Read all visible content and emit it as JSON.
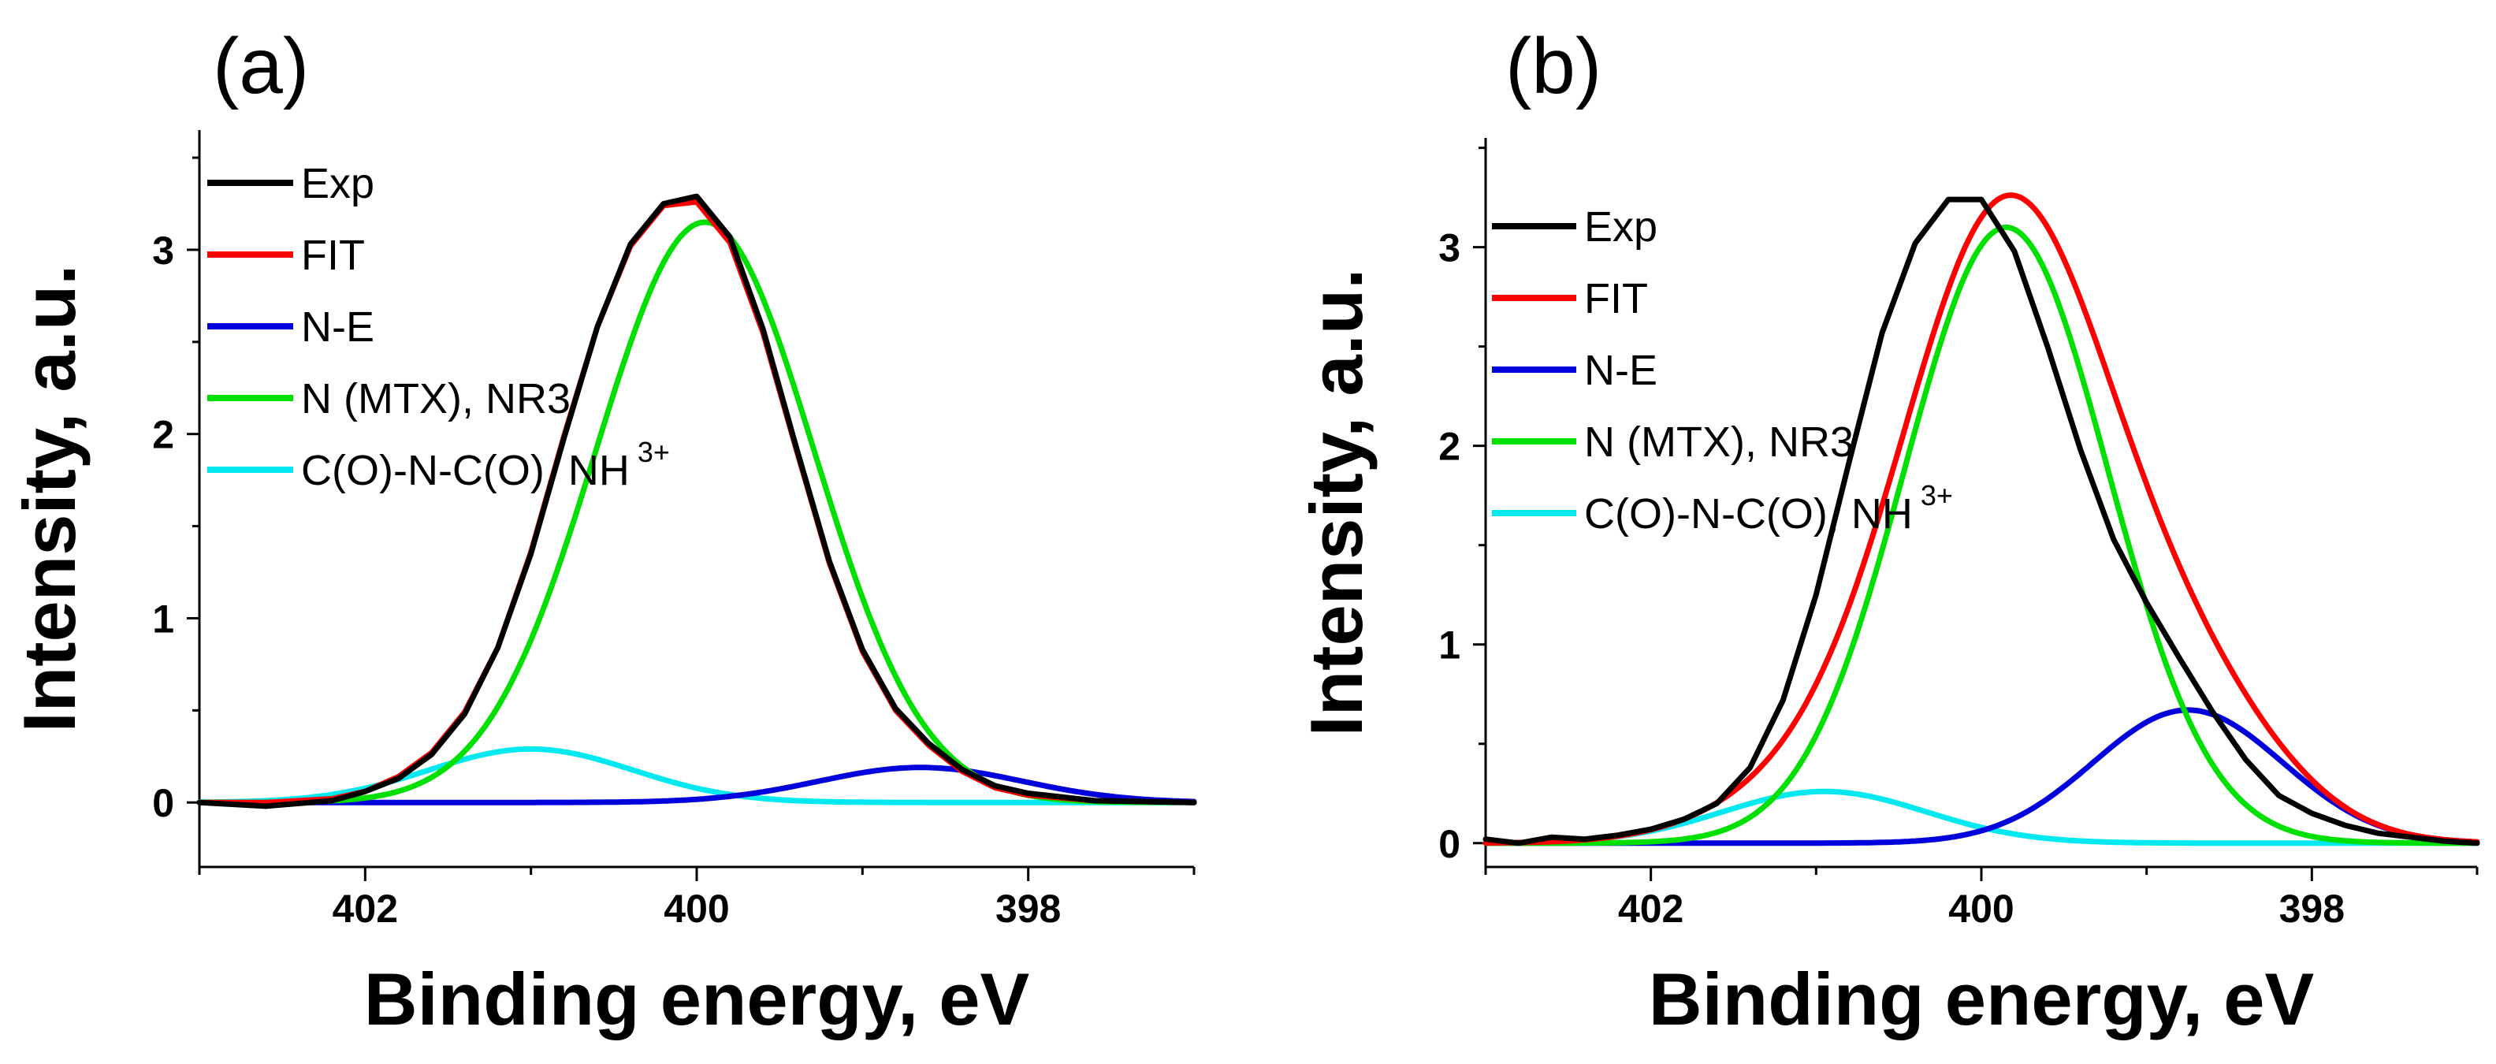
{
  "chart_data": [
    {
      "panel_label": "(a)",
      "type": "line",
      "xlabel": "Binding energy, eV",
      "ylabel": "Intensity, a.u.",
      "xlim": [
        403.0,
        397.0
      ],
      "ylim": [
        -0.35,
        3.65
      ],
      "x_ticks": [
        402,
        400,
        398
      ],
      "y_ticks": [
        0,
        1,
        2,
        3
      ],
      "grid": false,
      "legend_position": "top-left",
      "components": [
        {
          "name": "N-E",
          "type": "gaussian",
          "amplitude": 0.19,
          "center": 398.65,
          "fwhm": 1.45
        },
        {
          "name": "N (MTX), NR3",
          "type": "gaussian",
          "amplitude": 3.15,
          "center": 399.95,
          "fwhm": 1.55
        },
        {
          "name": "C(O)-N-C(O), NH",
          "superscript": "3+",
          "type": "gaussian",
          "amplitude": 0.29,
          "center": 401.0,
          "fwhm": 1.45
        }
      ],
      "series": [
        {
          "name": "Exp",
          "color": "#000000",
          "x": [
            403.0,
            402.6,
            402.2,
            402.0,
            401.8,
            401.6,
            401.4,
            401.2,
            401.0,
            400.8,
            400.6,
            400.4,
            400.2,
            400.0,
            399.8,
            399.6,
            399.4,
            399.2,
            399.0,
            398.8,
            398.6,
            398.4,
            398.2,
            398.0,
            397.6,
            397.0
          ],
          "y": [
            0.0,
            -0.02,
            0.01,
            0.06,
            0.13,
            0.26,
            0.48,
            0.84,
            1.35,
            1.98,
            2.58,
            3.03,
            3.25,
            3.29,
            3.07,
            2.57,
            1.93,
            1.31,
            0.83,
            0.51,
            0.32,
            0.18,
            0.09,
            0.05,
            0.01,
            0.0
          ]
        },
        {
          "name": "FIT",
          "color": "#ff0000",
          "x": [
            403.0,
            402.6,
            402.2,
            402.0,
            401.8,
            401.6,
            401.4,
            401.2,
            401.0,
            400.8,
            400.6,
            400.4,
            400.2,
            400.0,
            399.8,
            399.6,
            399.4,
            399.2,
            399.0,
            398.8,
            398.6,
            398.4,
            398.2,
            398.0,
            397.6,
            397.0
          ],
          "y": [
            0.0,
            0.0,
            0.02,
            0.06,
            0.14,
            0.27,
            0.49,
            0.84,
            1.36,
            1.99,
            2.58,
            3.02,
            3.24,
            3.26,
            3.04,
            2.55,
            1.92,
            1.3,
            0.82,
            0.5,
            0.31,
            0.17,
            0.08,
            0.04,
            0.01,
            0.0
          ]
        },
        {
          "name": "N-E",
          "color": "#0000dd",
          "fill": "component"
        },
        {
          "name": "N (MTX), NR3",
          "color": "#00e000",
          "fill": "component"
        },
        {
          "name": "C(O)-N-C(O), NH",
          "superscript": "3+",
          "color": "#00e8f0",
          "fill": "component"
        }
      ]
    },
    {
      "panel_label": "(b)",
      "type": "line",
      "xlabel": "Binding energy, eV",
      "ylabel": "Intensity, a.u.",
      "xlim": [
        403.0,
        397.0
      ],
      "ylim": [
        -0.12,
        3.55
      ],
      "x_ticks": [
        402,
        400,
        398
      ],
      "y_ticks": [
        0,
        1,
        2,
        3
      ],
      "grid": false,
      "legend_position": "top-left",
      "components": [
        {
          "name": "N-E",
          "type": "gaussian",
          "amplitude": 0.67,
          "center": 398.75,
          "fwhm": 1.35
        },
        {
          "name": "N (MTX), NR3",
          "type": "gaussian",
          "amplitude": 3.1,
          "center": 399.85,
          "fwhm": 1.45
        },
        {
          "name": "C(O)-N-C(O), NH",
          "superscript": "3+",
          "type": "gaussian",
          "amplitude": 0.26,
          "center": 400.95,
          "fwhm": 1.45
        }
      ],
      "series": [
        {
          "name": "Exp",
          "color": "#000000",
          "x": [
            403.0,
            402.8,
            402.6,
            402.4,
            402.2,
            402.0,
            401.8,
            401.6,
            401.4,
            401.2,
            401.0,
            400.8,
            400.6,
            400.4,
            400.2,
            400.0,
            399.8,
            399.6,
            399.4,
            399.2,
            399.0,
            398.8,
            398.6,
            398.4,
            398.2,
            398.0,
            397.8,
            397.6,
            397.4,
            397.2,
            397.0
          ],
          "y": [
            0.02,
            0.0,
            0.03,
            0.02,
            0.04,
            0.07,
            0.12,
            0.2,
            0.38,
            0.72,
            1.25,
            1.92,
            2.57,
            3.02,
            3.24,
            3.24,
            2.98,
            2.5,
            1.98,
            1.53,
            1.21,
            0.93,
            0.66,
            0.42,
            0.24,
            0.15,
            0.09,
            0.05,
            0.03,
            0.01,
            0.0
          ]
        },
        {
          "name": "FIT",
          "color": "#ff0000",
          "fill": "sum"
        },
        {
          "name": "N-E",
          "color": "#0000dd",
          "fill": "component"
        },
        {
          "name": "N (MTX), NR3",
          "color": "#00e000",
          "fill": "component"
        },
        {
          "name": "C(O)-N-C(O), NH",
          "superscript": "3+",
          "color": "#00e8f0",
          "fill": "component"
        }
      ]
    }
  ]
}
